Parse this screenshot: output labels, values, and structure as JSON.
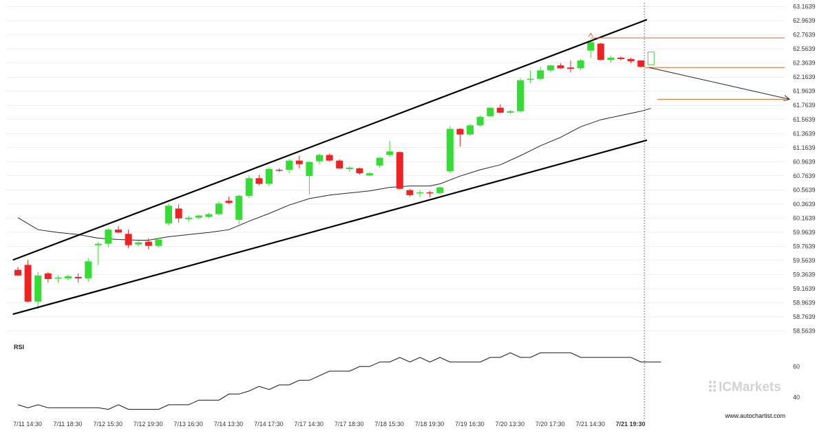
{
  "chart_data": {
    "type": "candlestick",
    "price_axis": {
      "ticks": [
        "63.1639",
        "62.9639",
        "62.7639",
        "62.5639",
        "62.3639",
        "62.1639",
        "61.9639",
        "61.7639",
        "61.5639",
        "61.3639",
        "61.1639",
        "60.9639",
        "60.7639",
        "60.5639",
        "60.3639",
        "60.1639",
        "59.9639",
        "59.7639",
        "59.5639",
        "59.3639",
        "59.1639",
        "58.9639",
        "58.7639",
        "58.5639"
      ],
      "range": [
        58.5,
        63.18
      ]
    },
    "time_axis": {
      "labels": [
        "7/11 14:30",
        "7/11 18:30",
        "7/12 15:30",
        "7/12 19:30",
        "7/13 16:30",
        "7/14 13:30",
        "7/14 17:30",
        "7/17 14:30",
        "7/17 18:30",
        "7/18 15:30",
        "7/18 19:30",
        "7/19 16:30",
        "7/20 13:30",
        "7/20 17:30",
        "7/21 14:30",
        "7/21 19:30"
      ],
      "current_label": "7/21 19:30"
    },
    "candles": [
      {
        "o": 59.43,
        "h": 59.47,
        "l": 59.35,
        "c": 59.35
      },
      {
        "o": 59.5,
        "h": 59.57,
        "l": 58.97,
        "c": 58.98
      },
      {
        "o": 58.98,
        "h": 59.4,
        "l": 58.87,
        "c": 59.35
      },
      {
        "o": 59.38,
        "h": 59.4,
        "l": 59.25,
        "c": 59.3
      },
      {
        "o": 59.31,
        "h": 59.35,
        "l": 59.25,
        "c": 59.32
      },
      {
        "o": 59.31,
        "h": 59.36,
        "l": 59.28,
        "c": 59.34
      },
      {
        "o": 59.33,
        "h": 59.38,
        "l": 59.25,
        "c": 59.31
      },
      {
        "o": 59.31,
        "h": 59.6,
        "l": 59.26,
        "c": 59.55
      },
      {
        "o": 59.78,
        "h": 59.82,
        "l": 59.5,
        "c": 59.8
      },
      {
        "o": 59.8,
        "h": 60.02,
        "l": 59.75,
        "c": 60.0
      },
      {
        "o": 60.0,
        "h": 60.05,
        "l": 59.95,
        "c": 59.96
      },
      {
        "o": 59.94,
        "h": 60.0,
        "l": 59.74,
        "c": 59.78
      },
      {
        "o": 59.79,
        "h": 59.84,
        "l": 59.76,
        "c": 59.82
      },
      {
        "o": 59.83,
        "h": 59.88,
        "l": 59.72,
        "c": 59.77
      },
      {
        "o": 59.77,
        "h": 59.88,
        "l": 59.75,
        "c": 59.86
      },
      {
        "o": 60.09,
        "h": 60.37,
        "l": 60.06,
        "c": 60.34
      },
      {
        "o": 60.3,
        "h": 60.36,
        "l": 60.1,
        "c": 60.16
      },
      {
        "o": 60.15,
        "h": 60.2,
        "l": 60.11,
        "c": 60.17
      },
      {
        "o": 60.17,
        "h": 60.21,
        "l": 60.15,
        "c": 60.2
      },
      {
        "o": 60.18,
        "h": 60.24,
        "l": 60.16,
        "c": 60.22
      },
      {
        "o": 60.22,
        "h": 60.4,
        "l": 60.2,
        "c": 60.37
      },
      {
        "o": 60.41,
        "h": 60.47,
        "l": 60.36,
        "c": 60.38
      },
      {
        "o": 60.14,
        "h": 60.5,
        "l": 60.08,
        "c": 60.48
      },
      {
        "o": 60.48,
        "h": 60.77,
        "l": 60.45,
        "c": 60.73
      },
      {
        "o": 60.73,
        "h": 60.78,
        "l": 60.63,
        "c": 60.65
      },
      {
        "o": 60.65,
        "h": 60.88,
        "l": 60.62,
        "c": 60.86
      },
      {
        "o": 60.85,
        "h": 60.87,
        "l": 60.82,
        "c": 60.84
      },
      {
        "o": 60.85,
        "h": 61.0,
        "l": 60.8,
        "c": 60.98
      },
      {
        "o": 60.98,
        "h": 61.05,
        "l": 60.87,
        "c": 60.93
      },
      {
        "o": 60.76,
        "h": 60.97,
        "l": 60.5,
        "c": 60.96
      },
      {
        "o": 60.97,
        "h": 61.08,
        "l": 60.93,
        "c": 61.06
      },
      {
        "o": 61.06,
        "h": 61.08,
        "l": 60.97,
        "c": 60.98
      },
      {
        "o": 60.98,
        "h": 61.0,
        "l": 60.86,
        "c": 60.87
      },
      {
        "o": 60.86,
        "h": 60.9,
        "l": 60.82,
        "c": 60.88
      },
      {
        "o": 60.87,
        "h": 60.88,
        "l": 60.78,
        "c": 60.8
      },
      {
        "o": 60.77,
        "h": 60.82,
        "l": 60.76,
        "c": 60.8
      },
      {
        "o": 60.91,
        "h": 61.03,
        "l": 60.88,
        "c": 61.02
      },
      {
        "o": 61.06,
        "h": 61.26,
        "l": 61.03,
        "c": 61.11
      },
      {
        "o": 61.1,
        "h": 61.11,
        "l": 60.57,
        "c": 60.58
      },
      {
        "o": 60.56,
        "h": 60.58,
        "l": 60.47,
        "c": 60.49
      },
      {
        "o": 60.53,
        "h": 60.56,
        "l": 60.46,
        "c": 60.53
      },
      {
        "o": 60.53,
        "h": 60.55,
        "l": 60.46,
        "c": 60.52
      },
      {
        "o": 60.52,
        "h": 60.62,
        "l": 60.5,
        "c": 60.6
      },
      {
        "o": 60.83,
        "h": 61.47,
        "l": 60.8,
        "c": 61.43
      },
      {
        "o": 61.43,
        "h": 61.44,
        "l": 61.18,
        "c": 61.35
      },
      {
        "o": 61.35,
        "h": 61.5,
        "l": 61.33,
        "c": 61.48
      },
      {
        "o": 61.48,
        "h": 61.62,
        "l": 61.46,
        "c": 61.6
      },
      {
        "o": 61.61,
        "h": 61.73,
        "l": 61.6,
        "c": 61.73
      },
      {
        "o": 61.73,
        "h": 61.78,
        "l": 61.65,
        "c": 61.66
      },
      {
        "o": 61.66,
        "h": 61.7,
        "l": 61.64,
        "c": 61.68
      },
      {
        "o": 61.68,
        "h": 62.15,
        "l": 61.66,
        "c": 62.12
      },
      {
        "o": 62.13,
        "h": 62.26,
        "l": 62.08,
        "c": 62.14
      },
      {
        "o": 62.14,
        "h": 62.31,
        "l": 62.12,
        "c": 62.26
      },
      {
        "o": 62.26,
        "h": 62.34,
        "l": 62.23,
        "c": 62.33
      },
      {
        "o": 62.33,
        "h": 62.36,
        "l": 62.28,
        "c": 62.29
      },
      {
        "o": 62.3,
        "h": 62.4,
        "l": 62.23,
        "c": 62.28
      },
      {
        "o": 62.29,
        "h": 62.42,
        "l": 62.26,
        "c": 62.4
      },
      {
        "o": 62.54,
        "h": 62.69,
        "l": 62.44,
        "c": 62.66
      },
      {
        "o": 62.64,
        "h": 62.65,
        "l": 62.4,
        "c": 62.41
      },
      {
        "o": 62.41,
        "h": 62.47,
        "l": 62.37,
        "c": 62.44
      },
      {
        "o": 62.44,
        "h": 62.46,
        "l": 62.4,
        "c": 62.42
      },
      {
        "o": 62.42,
        "h": 62.44,
        "l": 62.36,
        "c": 62.39
      },
      {
        "o": 62.4,
        "h": 62.4,
        "l": 62.3,
        "c": 62.31
      },
      {
        "o": 62.34,
        "h": 62.52,
        "l": 62.34,
        "c": 62.52,
        "hollow": true
      }
    ],
    "moving_average": [
      [
        0,
        60.17
      ],
      [
        2,
        60.0
      ],
      [
        4,
        59.96
      ],
      [
        6,
        59.93
      ],
      [
        8,
        59.88
      ],
      [
        10,
        59.86
      ],
      [
        12,
        59.85
      ],
      [
        13,
        59.85
      ],
      [
        15,
        59.9
      ],
      [
        17,
        59.93
      ],
      [
        19,
        59.96
      ],
      [
        21,
        60.0
      ],
      [
        23,
        60.12
      ],
      [
        25,
        60.23
      ],
      [
        27,
        60.35
      ],
      [
        29,
        60.44
      ],
      [
        31,
        60.49
      ],
      [
        33,
        60.52
      ],
      [
        35,
        60.55
      ],
      [
        37,
        60.6
      ],
      [
        39,
        60.62
      ],
      [
        41,
        60.62
      ],
      [
        42,
        60.65
      ],
      [
        44,
        60.76
      ],
      [
        46,
        60.85
      ],
      [
        48,
        60.92
      ],
      [
        50,
        61.05
      ],
      [
        52,
        61.19
      ],
      [
        54,
        61.31
      ],
      [
        56,
        61.46
      ],
      [
        58,
        61.56
      ],
      [
        60,
        61.62
      ],
      [
        62,
        61.68
      ],
      [
        63,
        61.72
      ]
    ],
    "channel": {
      "upper": [
        [
          -0.5,
          59.57
        ],
        [
          62.6,
          62.98
        ]
      ],
      "lower": [
        [
          -0.5,
          58.8
        ],
        [
          62.6,
          61.27
        ]
      ]
    },
    "levels": [
      62.72,
      62.3,
      61.85
    ],
    "projection": [
      [
        62.8,
        62.3
      ],
      [
        77.4,
        61.85
      ]
    ],
    "rsi": {
      "label": "RSI",
      "ticks": [
        "60",
        "40"
      ],
      "range": [
        30,
        75
      ],
      "values": [
        35,
        33,
        35,
        33,
        33,
        33,
        33,
        33,
        33,
        32,
        35,
        32,
        32,
        32,
        32,
        35,
        35,
        35,
        38,
        38,
        38,
        42,
        42,
        44,
        47,
        45,
        48,
        48,
        51,
        51,
        54,
        57,
        57,
        57,
        60,
        60,
        63,
        63,
        66,
        63,
        66,
        63,
        66,
        63,
        63,
        63,
        63,
        66,
        66,
        69,
        66,
        66,
        69,
        69,
        69,
        69,
        66,
        66,
        66,
        66,
        66,
        66,
        63,
        63,
        63
      ]
    },
    "colors": {
      "up": "#33dd33",
      "down": "#ee2222",
      "pattern": "#000000",
      "level": "#e06020",
      "grid": "#dddddd"
    }
  },
  "watermark": {
    "brand": "ICMarkets",
    "url": "www.autochartist.com"
  }
}
